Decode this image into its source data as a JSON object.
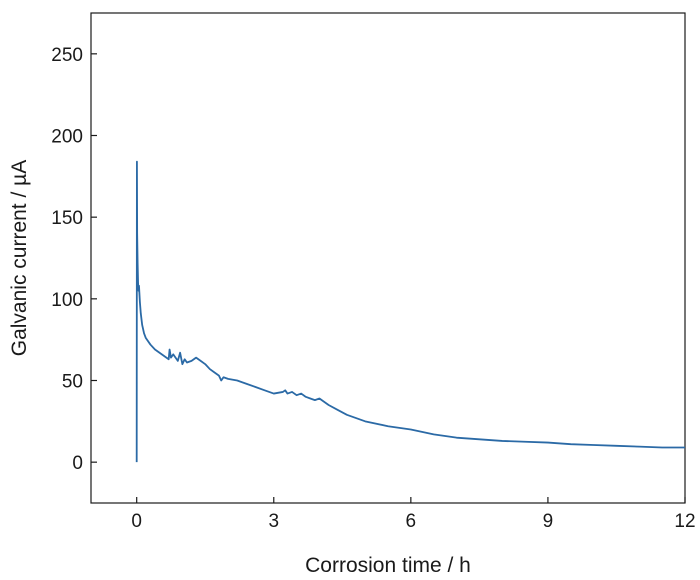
{
  "chart_data": {
    "type": "line",
    "title": "",
    "xlabel": "Corrosion time / h",
    "ylabel": "Galvanic current / µA",
    "xlim": [
      -1,
      12
    ],
    "ylim": [
      -25,
      275
    ],
    "xticks": [
      0,
      3,
      6,
      9,
      12
    ],
    "yticks": [
      0,
      50,
      100,
      150,
      200,
      250
    ],
    "xtick_labels": [
      "0",
      "3",
      "6",
      "9",
      "12"
    ],
    "ytick_labels": [
      "0",
      "50",
      "100",
      "150",
      "200",
      "250"
    ],
    "grid": false,
    "legend": "none",
    "series": [
      {
        "color": "#2b6aa6",
        "x": [
          0,
          0.005,
          0.01,
          0.02,
          0.03,
          0.04,
          0.05,
          0.07,
          0.09,
          0.12,
          0.16,
          0.2,
          0.3,
          0.4,
          0.5,
          0.6,
          0.7,
          0.72,
          0.75,
          0.8,
          0.9,
          0.95,
          1.0,
          1.05,
          1.1,
          1.2,
          1.3,
          1.35,
          1.4,
          1.5,
          1.6,
          1.7,
          1.8,
          1.85,
          1.9,
          2.0,
          2.2,
          2.4,
          2.6,
          2.8,
          3.0,
          3.2,
          3.25,
          3.3,
          3.4,
          3.5,
          3.6,
          3.7,
          3.8,
          3.9,
          4.0,
          4.1,
          4.2,
          4.4,
          4.6,
          4.8,
          5.0,
          5.5,
          6.0,
          6.5,
          7.0,
          7.5,
          8.0,
          8.5,
          9.0,
          9.5,
          10.0,
          10.5,
          11.0,
          11.5,
          12.0
        ],
        "y": [
          0,
          184,
          140,
          122,
          110,
          105,
          108,
          98,
          91,
          84,
          79,
          76,
          72,
          69,
          67,
          65,
          63,
          69,
          64,
          66,
          62,
          67,
          60,
          63,
          61,
          62,
          64,
          63,
          62,
          60,
          57,
          55,
          53,
          50,
          52,
          51,
          50,
          48,
          46,
          44,
          42,
          43,
          44,
          42,
          43,
          41,
          42,
          40,
          39,
          38,
          39,
          37,
          35,
          32,
          29,
          27,
          25,
          22,
          20,
          17,
          15,
          14,
          13,
          12.5,
          12,
          11,
          10.5,
          10,
          9.5,
          9,
          9
        ]
      }
    ]
  }
}
